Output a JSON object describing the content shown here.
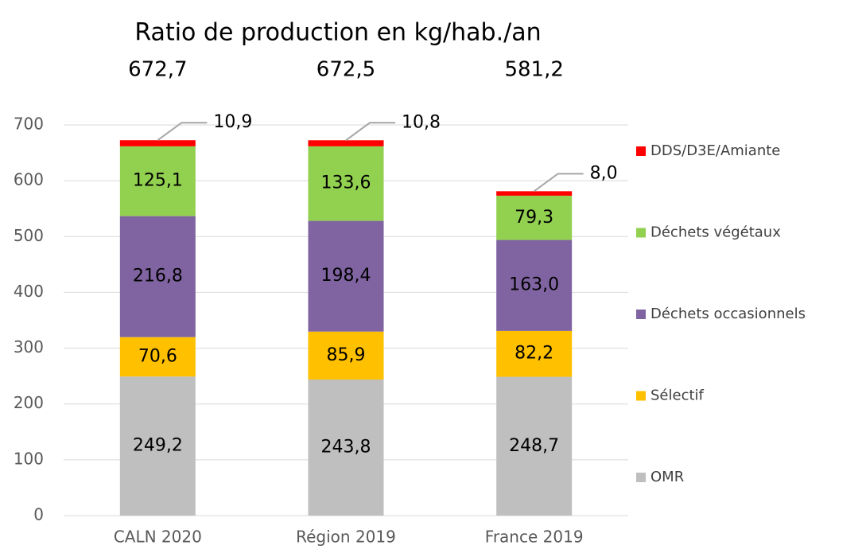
{
  "chart_data": {
    "type": "stacked_bar",
    "title": "Ratio de production en kg/hab./an",
    "totals": [
      "672,7",
      "672,5",
      "581,2"
    ],
    "categories": [
      "CALN 2020",
      "Région 2019",
      "France 2019"
    ],
    "series": [
      {
        "name": "OMR",
        "color": "#bfbfbf",
        "values": [
          249.2,
          243.8,
          248.7
        ],
        "value_labels": [
          "249,2",
          "243,8",
          "248,7"
        ]
      },
      {
        "name": "Sélectif",
        "color": "#ffc000",
        "values": [
          70.6,
          85.9,
          82.2
        ],
        "value_labels": [
          "70,6",
          "85,9",
          "82,2"
        ]
      },
      {
        "name": "Déchets occasionnels",
        "color": "#8064a2",
        "values": [
          216.8,
          198.4,
          163.0
        ],
        "value_labels": [
          "216,8",
          "198,4",
          "163,0"
        ]
      },
      {
        "name": "Déchets végétaux",
        "color": "#92d050",
        "values": [
          125.1,
          133.6,
          79.3
        ],
        "value_labels": [
          "125,1",
          "133,6",
          "79,3"
        ]
      },
      {
        "name": "DDS/D3E/Amiante",
        "color": "#ff0000",
        "values": [
          10.9,
          10.8,
          8.0
        ],
        "value_labels": [
          "10,9",
          "10,8",
          "8,0"
        ]
      }
    ],
    "ylim": [
      0,
      700
    ],
    "yticks": [
      0,
      100,
      200,
      300,
      400,
      500,
      600,
      700
    ],
    "grid": true,
    "legend": "right"
  }
}
